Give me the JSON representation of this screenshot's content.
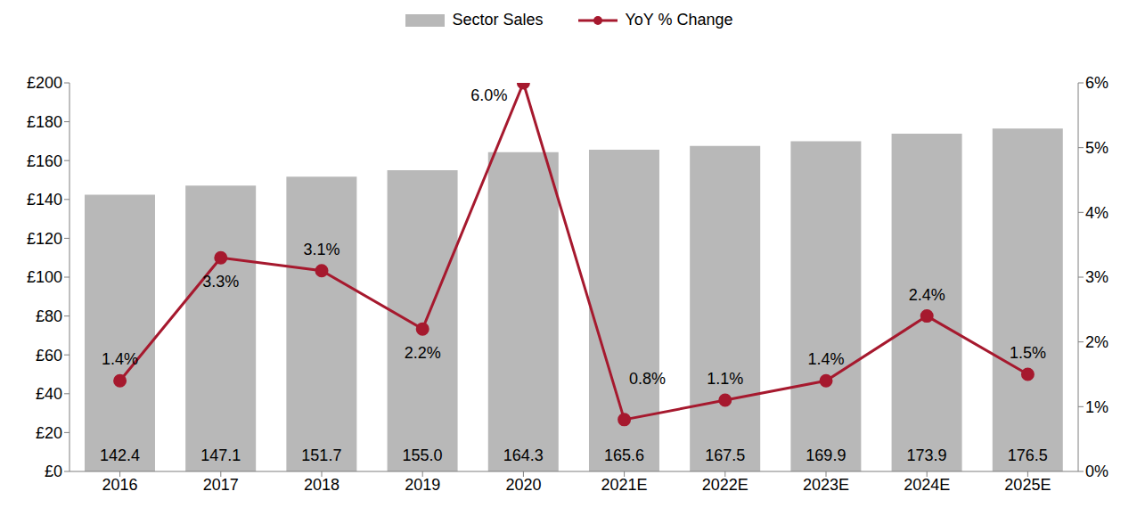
{
  "chart_data": {
    "type": "bar",
    "categories": [
      "2016",
      "2017",
      "2018",
      "2019",
      "2020",
      "2021E",
      "2022E",
      "2023E",
      "2024E",
      "2025E"
    ],
    "series": [
      {
        "name": "Sector Sales",
        "type": "bar",
        "color": "#B8B8B8",
        "values": [
          142.4,
          147.1,
          151.7,
          155.0,
          164.3,
          165.6,
          167.5,
          169.9,
          173.9,
          176.5
        ],
        "value_labels": [
          "142.4",
          "147.1",
          "151.7",
          "155.0",
          "164.3",
          "165.6",
          "167.5",
          "169.9",
          "173.9",
          "176.5"
        ]
      },
      {
        "name": "YoY % Change",
        "type": "line",
        "axis": "y2",
        "color": "#A6192E",
        "marker": "circle",
        "values": [
          1.4,
          3.3,
          3.1,
          2.2,
          6.0,
          0.8,
          1.1,
          1.4,
          2.4,
          1.5
        ],
        "value_labels": [
          "1.4%",
          "3.3%",
          "3.1%",
          "2.2%",
          "6.0%",
          "0.8%",
          "1.1%",
          "1.4%",
          "2.4%",
          "1.5%"
        ]
      }
    ],
    "ylim": [
      0,
      200
    ],
    "yticks": [
      {
        "value": 0,
        "label": "£0"
      },
      {
        "value": 20,
        "label": "£20"
      },
      {
        "value": 40,
        "label": "£40"
      },
      {
        "value": 60,
        "label": "£60"
      },
      {
        "value": 80,
        "label": "£80"
      },
      {
        "value": 100,
        "label": "£100"
      },
      {
        "value": 120,
        "label": "£120"
      },
      {
        "value": 140,
        "label": "£140"
      },
      {
        "value": 160,
        "label": "£160"
      },
      {
        "value": 180,
        "label": "£180"
      },
      {
        "value": 200,
        "label": "£200"
      }
    ],
    "y2lim": [
      0,
      6
    ],
    "y2ticks": [
      {
        "value": 0,
        "label": "0%"
      },
      {
        "value": 1,
        "label": "1%"
      },
      {
        "value": 2,
        "label": "2%"
      },
      {
        "value": 3,
        "label": "3%"
      },
      {
        "value": 4,
        "label": "4%"
      },
      {
        "value": 5,
        "label": "5%"
      },
      {
        "value": 6,
        "label": "6%"
      }
    ],
    "data_labels": true,
    "legend": "top",
    "grid": false
  }
}
